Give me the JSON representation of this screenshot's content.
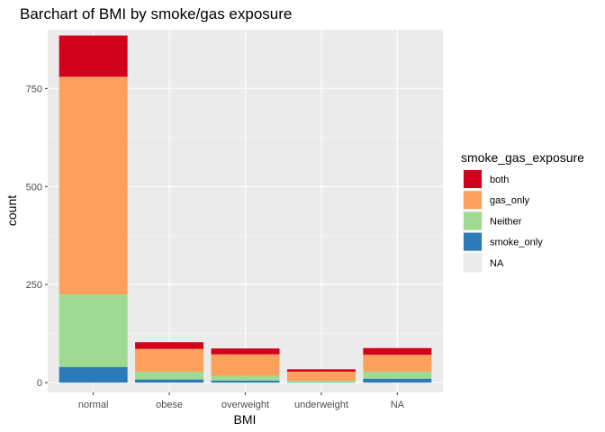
{
  "chart_data": {
    "type": "bar",
    "stacked": true,
    "title": "Barchart of BMI by smoke/gas exposure",
    "xlabel": "BMI",
    "ylabel": "count",
    "ylim": [
      0,
      900
    ],
    "yticks": [
      0,
      250,
      500,
      750
    ],
    "grid": true,
    "legend_position": "right",
    "categories": [
      "normal",
      "obese",
      "overweight",
      "underweight",
      "NA"
    ],
    "legend_title": "smoke_gas_exposure",
    "series": [
      {
        "name": "smoke_only",
        "color": "#2C7BB6",
        "values": [
          40,
          8,
          5,
          1,
          10
        ]
      },
      {
        "name": "Neither",
        "color": "#A0D991",
        "values": [
          185,
          20,
          12,
          4,
          18
        ]
      },
      {
        "name": "gas_only",
        "color": "#FDA05B",
        "values": [
          555,
          58,
          55,
          23,
          43
        ]
      },
      {
        "name": "both",
        "color": "#D0021B",
        "values": [
          105,
          17,
          15,
          6,
          17
        ]
      },
      {
        "name": "NA",
        "color": "#EBEBEB",
        "values": [
          0,
          0,
          0,
          0,
          0
        ]
      }
    ],
    "legend_order": [
      "both",
      "gas_only",
      "Neither",
      "smoke_only",
      "NA"
    ]
  }
}
